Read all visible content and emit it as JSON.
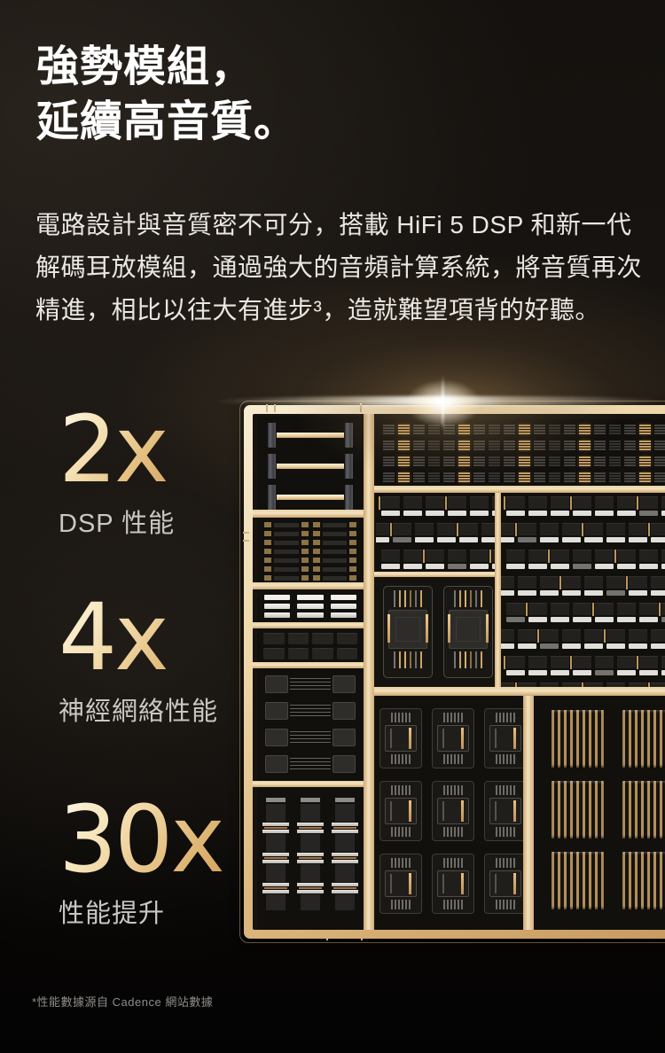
{
  "header": {
    "line1": "強勢模組，",
    "line2": "延續高音質。"
  },
  "intro": {
    "lines": [
      "電路設計與音質密不可分，搭載 HiFi 5 DSP 和新一代",
      "解碼耳放模組，通過強大的音頻計算系統，將音質再次",
      "精進，相比以往大有進步³，造就難望項背的好聽。"
    ]
  },
  "stats": [
    {
      "value": "2x",
      "label": "DSP 性能"
    },
    {
      "value": "4x",
      "label": "神經網絡性能"
    },
    {
      "value": "30x",
      "label": "性能提升"
    }
  ],
  "footnote": {
    "text": "*性能數據源自 Cadence 網站數據"
  },
  "chip": {
    "type": "soc-die-illustration",
    "modules": [
      "bus-macro-block",
      "cell-row-block",
      "sram-bar-block",
      "logic-cell-block",
      "capacitor-block",
      "inductor-stack-block",
      "standard-cell-band",
      "memory-array-upper",
      "dsp-core-macros",
      "memory-array-main",
      "package-grid",
      "comb-capacitor-grid"
    ]
  },
  "colors": {
    "background": "#14110e",
    "heading_text": "#ffffff",
    "body_text": "#eae7e3",
    "stat_gradient_start": "#fdf5e0",
    "stat_gradient_end": "#d3a25c",
    "stat_label_text": "#c9c7c3",
    "footnote_text": "#8f8d89",
    "chip_frame_gold": "#eed7a8",
    "chip_interior": "#161311",
    "accent_gold": "#c89d61"
  }
}
